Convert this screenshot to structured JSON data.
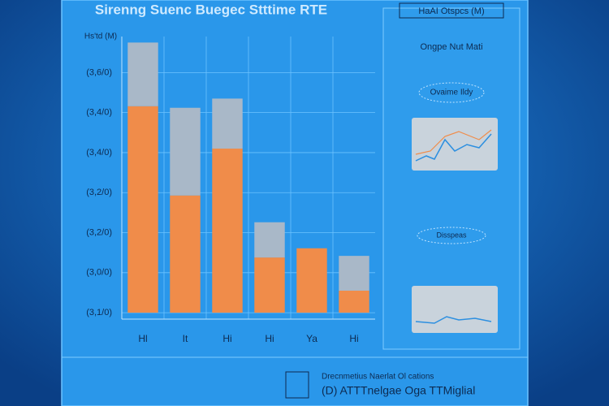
{
  "chart_data": {
    "type": "stacked_bar",
    "title": "Sirenng Suenc Buegec Stttime RTE",
    "y_label": "Hs'td (M)",
    "categories": [
      "Hl",
      "It",
      "Hi",
      "Hi",
      "Ya",
      "Hi"
    ],
    "series": [
      {
        "color": "#f08c4a",
        "values": [
          5.16,
          2.93,
          4.1,
          1.38,
          1.61,
          0.55
        ]
      },
      {
        "color": "#a9b8c8",
        "values": [
          1.59,
          2.19,
          1.25,
          0.88,
          0,
          0.87
        ]
      }
    ],
    "ylim": [
      -0.16,
      6.9
    ],
    "yticks": [
      {
        "value": 0,
        "label": "(3,1/0)"
      },
      {
        "value": 1,
        "label": "(3,0/0)"
      },
      {
        "value": 2,
        "label": "(3,2/0)"
      },
      {
        "value": 3,
        "label": "(3,2/0)"
      },
      {
        "value": 4,
        "label": "(3,4/0)"
      },
      {
        "value": 5,
        "label": "(3,4/0)"
      },
      {
        "value": 6,
        "label": "(3,6/0)"
      }
    ],
    "grid": true
  },
  "side_panel": {
    "header": "HaAI Otspcs (M)",
    "subtitle": "Ongpe Nut Mati",
    "card_title": "Ovaime Ildy",
    "caption": "Disspeas",
    "footer_line1": "Drecnmetius Naerlat Ol cations",
    "footer_line2": "(D) ATTTnelgae Oga TTMiglial"
  }
}
